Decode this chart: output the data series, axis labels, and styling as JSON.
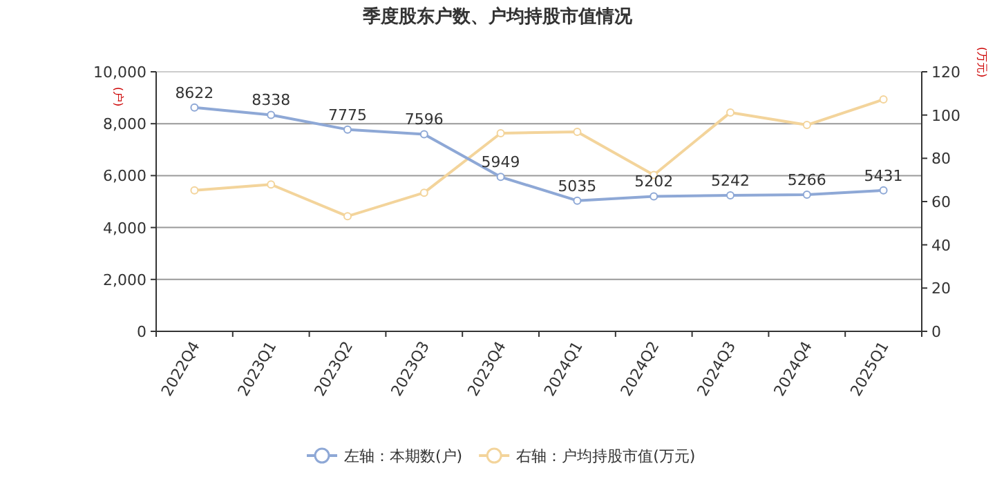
{
  "chart_data": {
    "type": "line",
    "title": "季度股东户数、户均持股市值情况",
    "ylabel": "(户)",
    "y2label": "(万元)",
    "categories": [
      "2022Q4",
      "2023Q1",
      "2023Q2",
      "2023Q3",
      "2023Q4",
      "2024Q1",
      "2024Q2",
      "2024Q3",
      "2024Q4",
      "2025Q1"
    ],
    "series": [
      {
        "name": "左轴：本期数(户)",
        "color": "#8ea8d6",
        "values": [
          8622,
          8338,
          7775,
          7596,
          5949,
          5035,
          5202,
          5242,
          5266,
          5431
        ],
        "value_labels": [
          "8622",
          "8338",
          "7775",
          "7596",
          "5949",
          "5035",
          "5202",
          "5242",
          "5266",
          "5431"
        ]
      },
      {
        "name": "右轴：户均持股市值(万元)",
        "color": "#f3d49b",
        "axis": "y2",
        "values": [
          65.2,
          67.9,
          53.2,
          64.1,
          91.6,
          92.2,
          72.3,
          101.2,
          95.4,
          107.2
        ]
      }
    ],
    "ylim": [
      0,
      10000
    ],
    "yticks": [
      {
        "value": 0,
        "label": "0"
      },
      {
        "value": 2000,
        "label": "2,000"
      },
      {
        "value": 4000,
        "label": "4,000"
      },
      {
        "value": 6000,
        "label": "6,000"
      },
      {
        "value": 8000,
        "label": "8,000"
      },
      {
        "value": 10000,
        "label": "10,000"
      }
    ],
    "y2lim": [
      0,
      120
    ],
    "y2ticks": [
      0,
      20,
      40,
      60,
      80,
      100,
      120
    ],
    "grid": "y",
    "legend": "bottom",
    "marker": "circle"
  }
}
